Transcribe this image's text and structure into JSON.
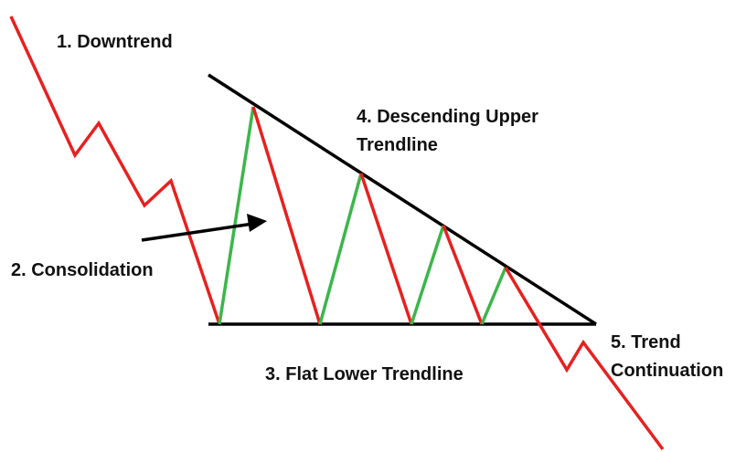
{
  "labels": [
    {
      "lines": [
        "1. Downtrend"
      ]
    },
    {
      "lines": [
        "2. Consolidation"
      ]
    },
    {
      "lines": [
        "3. Flat Lower Trendline"
      ]
    },
    {
      "lines": [
        "4. Descending Upper",
        "Trendline"
      ]
    },
    {
      "lines": [
        "5. Trend",
        "Continuation"
      ]
    }
  ]
}
